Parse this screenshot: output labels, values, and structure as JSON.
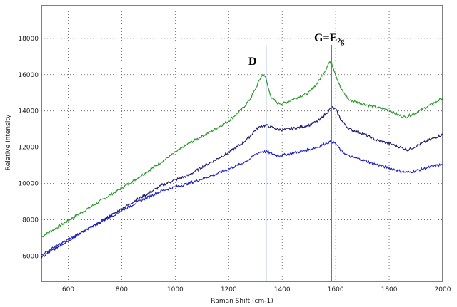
{
  "chart_data": {
    "type": "line",
    "title": "",
    "xlabel": "Raman Shift (cm-1)",
    "ylabel": "Relative Intensity",
    "xlim": [
      500,
      2000
    ],
    "ylim": [
      4600,
      19800
    ],
    "grid": true,
    "x_ticks": [
      600,
      800,
      1000,
      1200,
      1400,
      1600,
      1800,
      2000
    ],
    "y_ticks": [
      6000,
      8000,
      10000,
      12000,
      14000,
      16000,
      18000
    ],
    "x_tick_labels": [
      "600",
      "800",
      "1000",
      "1200",
      "1400",
      "1600",
      "1800",
      "2000"
    ],
    "y_tick_labels": [
      "6000",
      "8000",
      "10000",
      "12000",
      "14000",
      "16000",
      "18000"
    ],
    "annotations": [
      {
        "label": "D",
        "x": 1340
      },
      {
        "label_main": "G=E",
        "label_sub": "2g",
        "x": 1585
      }
    ],
    "colors": {
      "green": "#2a9a2a",
      "navy": "#1e1e70",
      "blue": "#2222cc",
      "marker": "#4a7fbf"
    },
    "series": [
      {
        "color": "#2a9a2a",
        "x": [
          500,
          550,
          600,
          650,
          700,
          750,
          800,
          850,
          900,
          950,
          1000,
          1050,
          1100,
          1150,
          1200,
          1250,
          1280,
          1300,
          1320,
          1330,
          1340,
          1350,
          1360,
          1380,
          1400,
          1420,
          1450,
          1500,
          1530,
          1560,
          1575,
          1585,
          1600,
          1620,
          1650,
          1700,
          1750,
          1800,
          1830,
          1860,
          1900,
          1950,
          2000
        ],
        "y": [
          7050,
          7500,
          7950,
          8400,
          8850,
          9300,
          9750,
          10200,
          10700,
          11200,
          11700,
          12200,
          12600,
          13000,
          13450,
          14100,
          14650,
          15200,
          15850,
          16050,
          15750,
          15150,
          14750,
          14450,
          14400,
          14500,
          14700,
          15000,
          15500,
          16200,
          16650,
          16650,
          16000,
          15200,
          14600,
          14400,
          14200,
          14050,
          13800,
          13650,
          13900,
          14300,
          14700
        ]
      },
      {
        "color": "#1e1e70",
        "x": [
          500,
          550,
          600,
          650,
          700,
          750,
          800,
          850,
          900,
          950,
          1000,
          1050,
          1100,
          1150,
          1200,
          1250,
          1280,
          1300,
          1320,
          1340,
          1360,
          1380,
          1400,
          1450,
          1500,
          1540,
          1570,
          1585,
          1600,
          1620,
          1650,
          1700,
          1750,
          1800,
          1850,
          1870,
          1900,
          1950,
          2000
        ],
        "y": [
          5900,
          6400,
          6850,
          7300,
          7700,
          8150,
          8600,
          9050,
          9450,
          9900,
          10200,
          10450,
          10900,
          11300,
          11700,
          12200,
          12600,
          12950,
          13150,
          13200,
          13100,
          13000,
          12950,
          13050,
          13200,
          13500,
          13950,
          14200,
          14100,
          13500,
          13000,
          12750,
          12400,
          12200,
          11950,
          11850,
          12050,
          12400,
          12700
        ]
      },
      {
        "color": "#2222cc",
        "x": [
          500,
          550,
          600,
          650,
          700,
          750,
          800,
          850,
          900,
          950,
          1000,
          1050,
          1100,
          1150,
          1200,
          1250,
          1280,
          1300,
          1320,
          1340,
          1360,
          1380,
          1400,
          1450,
          1500,
          1540,
          1570,
          1585,
          1600,
          1620,
          1650,
          1700,
          1750,
          1800,
          1850,
          1870,
          1900,
          1950,
          2000
        ],
        "y": [
          6050,
          6500,
          6900,
          7300,
          7700,
          8100,
          8500,
          8900,
          9250,
          9600,
          9800,
          10000,
          10250,
          10500,
          10800,
          11100,
          11350,
          11600,
          11750,
          11750,
          11650,
          11550,
          11550,
          11700,
          11850,
          12050,
          12250,
          12300,
          12200,
          11800,
          11500,
          11300,
          11050,
          10850,
          10650,
          10600,
          10700,
          10900,
          11050
        ]
      }
    ]
  }
}
